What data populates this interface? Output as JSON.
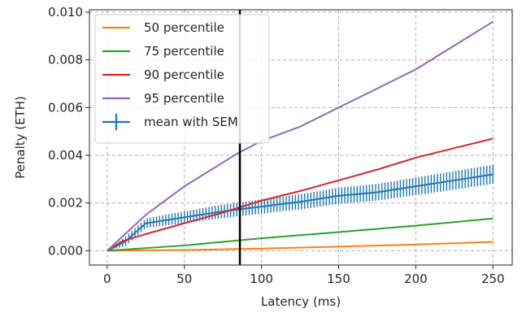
{
  "chart_data": {
    "type": "line",
    "title": "",
    "xlabel": "Latency (ms)",
    "ylabel": "Penalty (ETH)",
    "xlim": [
      -11.5,
      262.5
    ],
    "ylim": [
      -0.0006,
      0.0101
    ],
    "xticks": [
      0,
      50,
      100,
      150,
      200,
      250
    ],
    "xtick_labels": [
      "0",
      "50",
      "100",
      "150",
      "200",
      "250"
    ],
    "yticks": [
      0,
      0.002,
      0.004,
      0.006,
      0.008,
      0.01
    ],
    "ytick_labels": [
      "0.000",
      "0.002",
      "0.004",
      "0.006",
      "0.008",
      "0.010"
    ],
    "grid": true,
    "legend_position": "upper-left",
    "vline": {
      "x": 86,
      "color": "#000000"
    },
    "series": [
      {
        "name": "50 percentile",
        "color": "#ff7f0e",
        "x": [
          0,
          50,
          100,
          150,
          200,
          250
        ],
        "y": [
          0,
          3e-05,
          9e-05,
          0.00017,
          0.00026,
          0.00037
        ]
      },
      {
        "name": "75 percentile",
        "color": "#2ca02c",
        "x": [
          0,
          50,
          100,
          150,
          200,
          250
        ],
        "y": [
          0,
          0.00022,
          0.00052,
          0.00078,
          0.00105,
          0.00135
        ]
      },
      {
        "name": "90 percentile",
        "color": "#d62728",
        "x": [
          0,
          10,
          25,
          50,
          75,
          100,
          125,
          150,
          175,
          200,
          225,
          250
        ],
        "y": [
          0,
          0.0004,
          0.0007,
          0.00115,
          0.0016,
          0.0021,
          0.0025,
          0.00295,
          0.0034,
          0.0039,
          0.0043,
          0.0047
        ]
      },
      {
        "name": "95 percentile",
        "color": "#9467bd",
        "x": [
          0,
          25,
          50,
          85,
          100,
          125,
          150,
          175,
          200,
          225,
          250
        ],
        "y": [
          0,
          0.0015,
          0.0027,
          0.0041,
          0.0046,
          0.0052,
          0.006,
          0.0068,
          0.0076,
          0.0086,
          0.0096
        ]
      }
    ],
    "errorbar_series": {
      "name": "mean with SEM",
      "color": "#1f77b4",
      "x": [
        0,
        12,
        25,
        50,
        75,
        100,
        125,
        150,
        175,
        200,
        225,
        250
      ],
      "y": [
        0,
        0.0004,
        0.00115,
        0.0014,
        0.00165,
        0.00185,
        0.00205,
        0.0023,
        0.00245,
        0.0027,
        0.00295,
        0.0032
      ],
      "sem": [
        0,
        0.0002,
        0.0002,
        0.00025,
        0.00028,
        0.0003,
        0.00032,
        0.00034,
        0.00035,
        0.00037,
        0.00039,
        0.0004
      ]
    }
  }
}
